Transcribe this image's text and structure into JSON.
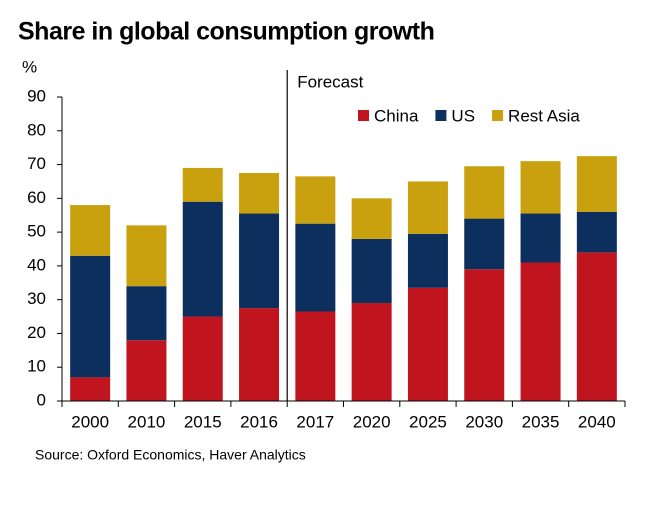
{
  "chart_data": {
    "type": "stacked_bar",
    "title": "Share in global consumption growth",
    "y_label": "%",
    "annotation": "Forecast",
    "source": "Source: Oxford Economics, Haver Analytics",
    "categories": [
      "2000",
      "2010",
      "2015",
      "2016",
      "2017",
      "2020",
      "2025",
      "2030",
      "2035",
      "2040"
    ],
    "series": [
      {
        "name": "China",
        "color": "#c0141e",
        "values": [
          7,
          18,
          25,
          27.5,
          26.5,
          29,
          33.5,
          39,
          41,
          44
        ]
      },
      {
        "name": "US",
        "color": "#0d2f5e",
        "values": [
          36,
          16,
          34,
          28,
          26,
          19,
          16,
          15,
          14.5,
          12
        ]
      },
      {
        "name": "Rest Asia",
        "color": "#c9a00e",
        "values": [
          15,
          18,
          10,
          12,
          14,
          12,
          15.5,
          15.5,
          15.5,
          16.5
        ]
      }
    ],
    "ylim": [
      0,
      90
    ],
    "yticks": [
      0,
      10,
      20,
      30,
      40,
      50,
      60,
      70,
      80,
      90
    ],
    "grid": false
  }
}
